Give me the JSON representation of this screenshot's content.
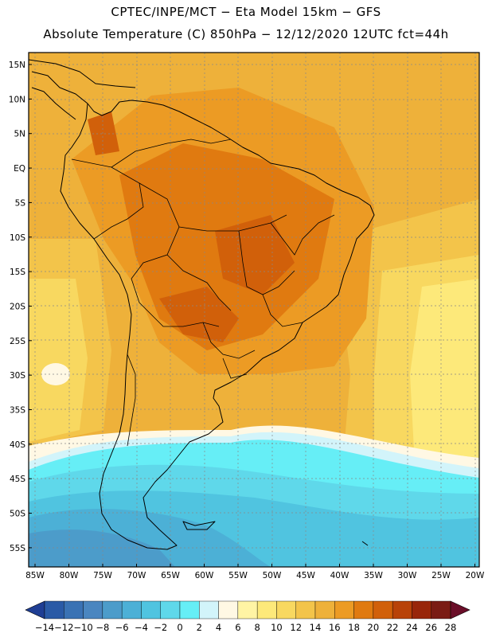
{
  "header": {
    "line1": "CPTEC/INPE/MCT −  Eta Model 15km − GFS",
    "line2": "Absolute Temperature (C) 850hPa − 12/12/2020 12UTC fct=44h"
  },
  "axes": {
    "lat_labels": [
      "15N",
      "10N",
      "5N",
      "EQ",
      "5S",
      "10S",
      "15S",
      "20S",
      "25S",
      "30S",
      "35S",
      "40S",
      "45S",
      "50S",
      "55S"
    ],
    "lon_labels": [
      "85W",
      "80W",
      "75W",
      "70W",
      "65W",
      "60W",
      "55W",
      "50W",
      "45W",
      "40W",
      "35W",
      "30W",
      "25W",
      "20W"
    ]
  },
  "colorbar": {
    "labels": [
      "−14",
      "−12",
      "−10",
      "−8",
      "−6",
      "−4",
      "−2",
      "0",
      "2",
      "4",
      "6",
      "8",
      "10",
      "12",
      "14",
      "16",
      "18",
      "20",
      "22",
      "24",
      "26",
      "28"
    ],
    "colors": [
      "#1f3e94",
      "#2a5aa6",
      "#3a72b4",
      "#4a86c0",
      "#4c9cca",
      "#4cb0d6",
      "#50c4e0",
      "#5fd8ea",
      "#66eef6",
      "#d2f4fa",
      "#fff8e4",
      "#fff4a4",
      "#fde97a",
      "#f8d860",
      "#f3c44a",
      "#eeb13a",
      "#ec9b24",
      "#e07a10",
      "#d1600a",
      "#b84208",
      "#98260a",
      "#7a1c14",
      "#6a0e28"
    ]
  },
  "map_data": {
    "variable": "Absolute Temperature (C) at 850hPa",
    "units": "C",
    "land_color": "#000000",
    "field_bands": [
      {
        "range": "22-24",
        "color": "#d1600a"
      },
      {
        "range": "20-22",
        "color": "#e07a10"
      },
      {
        "range": "18-20",
        "color": "#ec9b24"
      },
      {
        "range": "16-18",
        "color": "#eeb13a"
      },
      {
        "range": "14-16",
        "color": "#f3c44a"
      },
      {
        "range": "12-14",
        "color": "#f8d860"
      },
      {
        "range": "10-12",
        "color": "#fde97a"
      },
      {
        "range": "6-8",
        "color": "#fff8e4"
      },
      {
        "range": "4-6",
        "color": "#d2f4fa"
      },
      {
        "range": "2-4",
        "color": "#66eef6"
      },
      {
        "range": "0-2",
        "color": "#5fd8ea"
      },
      {
        "range": "-2-0",
        "color": "#50c4e0"
      },
      {
        "range": "-4--2",
        "color": "#4cb0d6"
      },
      {
        "range": "-6--4",
        "color": "#4c9cca"
      }
    ]
  }
}
